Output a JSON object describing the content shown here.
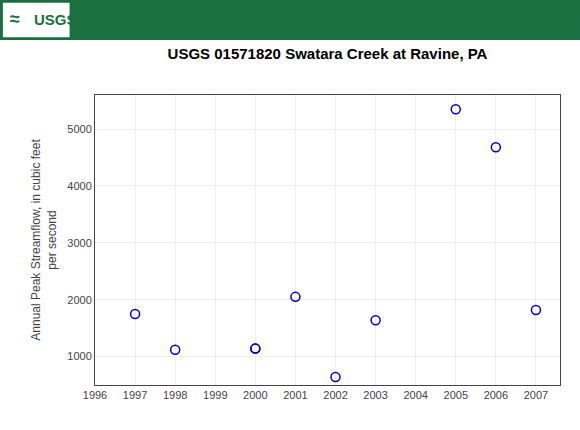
{
  "chart_data": {
    "type": "scatter",
    "title": "USGS 01571820 Swatara Creek at Ravine, PA",
    "ylabel": "Annual Peak Streamflow, in cubic feet\nper second",
    "annotations": [
      "≈",
      "USGS"
    ],
    "x": [
      1997,
      1998,
      2000,
      2000,
      2001,
      2002,
      2003,
      2005,
      2006,
      2007
    ],
    "values": [
      1750,
      1120,
      1140,
      1140,
      2050,
      640,
      1640,
      5350,
      4680,
      1820
    ],
    "color": "#0000CC",
    "marker": "open circle",
    "xlim": [
      1996,
      2007.6
    ],
    "ylim": [
      500,
      5600
    ],
    "xticks": [
      1996,
      1997,
      1998,
      1999,
      2000,
      2001,
      2002,
      2003,
      2004,
      2005,
      2006,
      2007
    ],
    "yticks": [
      1000,
      2000,
      3000,
      4000,
      5000
    ],
    "grid": true
  }
}
